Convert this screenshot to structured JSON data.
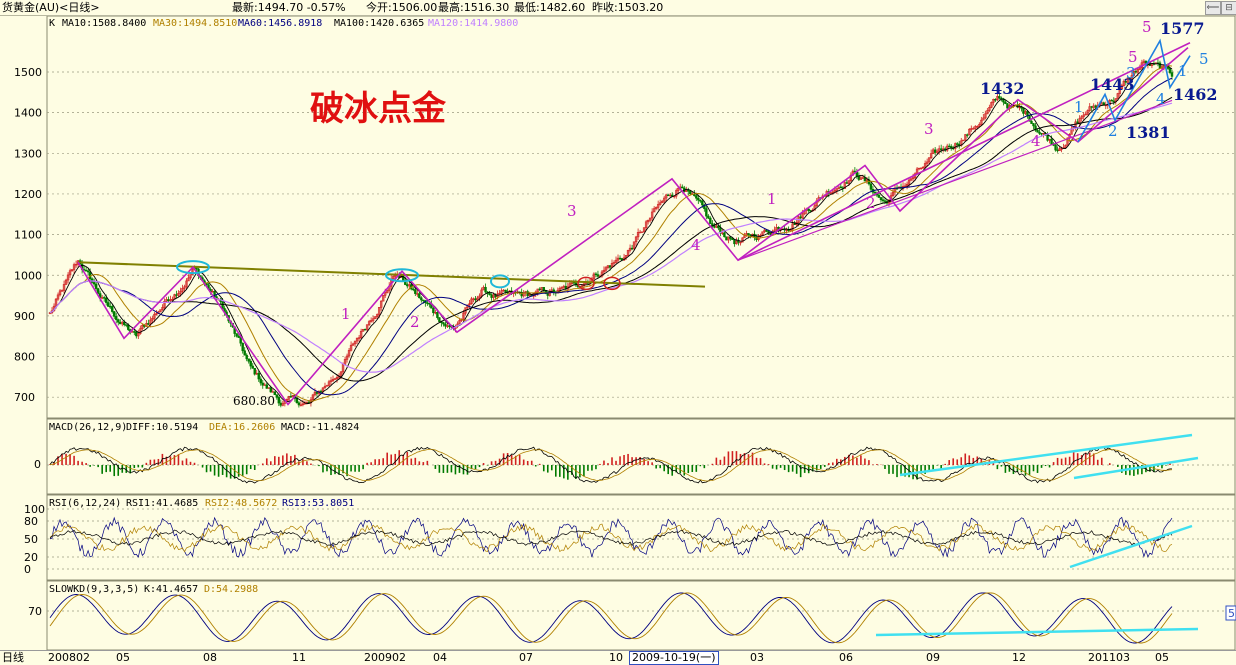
{
  "topbar": {
    "instrument": "货黄金(AU)<日线>",
    "latest": "最新:1494.70 -0.57%",
    "open": "今开:1506.00",
    "high": "最高:1516.30",
    "low": "最低:1482.60",
    "prev_close": "昨收:1503.20"
  },
  "main_panel": {
    "k_label": "K",
    "ma10": "MA10:1508.8400",
    "ma30": "MA30:1494.8510",
    "ma60": "MA60:1456.8918",
    "ma100": "MA100:1420.6365",
    "ma120": "MA120:1414.9800",
    "title_annotation": "破冰点金"
  },
  "macd_panel": {
    "label": "MACD(26,12,9)",
    "diff": "DIFF:10.5194",
    "dea": "DEA:16.2606",
    "macd": "MACD:-11.4824",
    "zero_tick": "0"
  },
  "rsi_panel": {
    "label": "RSI(6,12,24)",
    "rsi1": "RSI1:41.4685",
    "rsi2": "RSI2:48.5672",
    "rsi3": "RSI3:53.8051",
    "ticks": [
      "100",
      "80",
      "50",
      "20",
      "0"
    ]
  },
  "kd_panel": {
    "label": "SLOWKD(9,3,3,5)",
    "k": "K:41.4657",
    "d": "D:54.2988",
    "tick": "70"
  },
  "right_badge": "5",
  "bottombar": {
    "period": "日线",
    "dates": [
      "200802",
      "05",
      "08",
      "11",
      "200902",
      "04",
      "07",
      "10",
      "2009-10-19(一)",
      "03",
      "06",
      "09",
      "12",
      "201103",
      "05"
    ]
  },
  "colors": {
    "background": "#fefde3",
    "up": "#d02020",
    "down": "#007a00",
    "ma10": "#000000",
    "ma30": "#b08000",
    "ma60": "#000080",
    "ma100": "#000000",
    "ma120": "#c080ff",
    "wave_line": "#c020c0",
    "trend_line": "#808000",
    "cyan_line": "#40e0f0",
    "blue_line": "#2080e0"
  },
  "chart_data": [
    {
      "type": "candlestick",
      "title": "",
      "ylim": [
        660,
        1660
      ],
      "y_ticks": [
        "700",
        "800",
        "900",
        "1000",
        "1100",
        "1200",
        "1300",
        "1400",
        "1500"
      ],
      "x_ticks": [
        "200802",
        "05",
        "08",
        "11",
        "200902",
        "04",
        "07",
        "10",
        "2009-10-19(一)",
        "03",
        "06",
        "09",
        "12",
        "201103",
        "05"
      ],
      "price_path": [
        {
          "date": "2008-02",
          "close": 905
        },
        {
          "date": "2008-03",
          "close": 1030
        },
        {
          "date": "2008-04",
          "close": 920
        },
        {
          "date": "2008-05",
          "close": 845
        },
        {
          "date": "2008-06",
          "close": 935
        },
        {
          "date": "2008-07",
          "close": 1020
        },
        {
          "date": "2008-08",
          "close": 920
        },
        {
          "date": "2008-09",
          "close": 760
        },
        {
          "date": "2008-10",
          "close": 690
        },
        {
          "date": "2008-11",
          "close": 680.8
        },
        {
          "date": "2008-12",
          "close": 760
        },
        {
          "date": "2009-01",
          "close": 880
        },
        {
          "date": "2009-02",
          "close": 1010
        },
        {
          "date": "2009-03",
          "close": 930
        },
        {
          "date": "2009-04",
          "close": 870
        },
        {
          "date": "2009-05",
          "close": 960
        },
        {
          "date": "2009-06",
          "close": 940
        },
        {
          "date": "2009-07",
          "close": 950
        },
        {
          "date": "2009-08",
          "close": 960
        },
        {
          "date": "2009-09",
          "close": 1010
        },
        {
          "date": "2009-10",
          "close": 1050
        },
        {
          "date": "2009-11",
          "close": 1150
        },
        {
          "date": "2009-12",
          "close": 1230
        },
        {
          "date": "2010-01",
          "close": 1110
        },
        {
          "date": "2010-02",
          "close": 1080
        },
        {
          "date": "2010-03",
          "close": 1110
        },
        {
          "date": "2010-04",
          "close": 1150
        },
        {
          "date": "2010-05",
          "close": 1210
        },
        {
          "date": "2010-06",
          "close": 1260
        },
        {
          "date": "2010-07",
          "close": 1180
        },
        {
          "date": "2010-08",
          "close": 1240
        },
        {
          "date": "2010-09",
          "close": 1300
        },
        {
          "date": "2010-10",
          "close": 1360
        },
        {
          "date": "2010-11",
          "close": 1432
        },
        {
          "date": "2010-12",
          "close": 1390
        },
        {
          "date": "2011-01",
          "close": 1320
        },
        {
          "date": "2011-02",
          "close": 1400
        },
        {
          "date": "2011-03",
          "close": 1440
        },
        {
          "date": "2011-04",
          "close": 1520
        },
        {
          "date": "2011-05",
          "close": 1490
        }
      ],
      "annotations": [
        "680.80",
        "1432",
        "1443",
        "1381",
        "1577",
        "1462",
        "1",
        "2",
        "3",
        "4",
        "5"
      ],
      "wave_labels_purple": [
        "1",
        "2",
        "3",
        "4",
        "1",
        "2",
        "3",
        "4",
        "5",
        "5"
      ],
      "wave_labels_blue": [
        "1",
        "2",
        "3",
        "4",
        "5",
        "1"
      ],
      "price_labels": [
        "680.80",
        "1432",
        "1443",
        "1381",
        "1577",
        "1462"
      ]
    },
    {
      "type": "bar",
      "title": "MACD(26,12,9)",
      "series": [
        {
          "name": "DIFF",
          "last": 10.5194
        },
        {
          "name": "DEA",
          "last": 16.2606
        },
        {
          "name": "MACD",
          "last": -11.4824
        }
      ]
    },
    {
      "type": "line",
      "title": "RSI(6,12,24)",
      "ylim": [
        0,
        100
      ],
      "series": [
        {
          "name": "RSI1",
          "last": 41.4685
        },
        {
          "name": "RSI2",
          "last": 48.5672
        },
        {
          "name": "RSI3",
          "last": 53.8051
        }
      ]
    },
    {
      "type": "line",
      "title": "SLOWKD(9,3,3,5)",
      "series": [
        {
          "name": "K",
          "last": 41.4657
        },
        {
          "name": "D",
          "last": 54.2988
        }
      ]
    }
  ]
}
